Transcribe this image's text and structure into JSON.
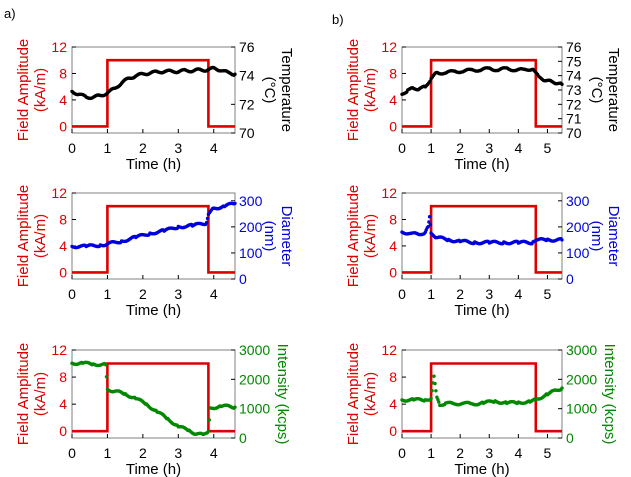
{
  "figure": {
    "panel_labels": [
      "a)",
      "b)"
    ],
    "colors": {
      "field": "#dd0000",
      "temperature": "#000000",
      "diameter": "#0000dd",
      "intensity": "#008800",
      "axis": "#000000",
      "grid_frame": "#808080"
    }
  },
  "chart_data": [
    {
      "id": "a1",
      "type": "line",
      "xlabel": "Time (h)",
      "ylabel_left": "Field Amplitude\n(kA/m)",
      "ylabel_right": "Temperature\n(°C)",
      "xlim": [
        0,
        4.6
      ],
      "x_ticks": [
        0,
        1,
        2,
        3,
        4
      ],
      "y_left_lim": [
        -1,
        12
      ],
      "y_left_ticks": [
        0,
        4,
        8,
        12
      ],
      "y_right_lim": [
        70,
        76
      ],
      "y_right_ticks": [
        70,
        72,
        74,
        76
      ],
      "series": [
        {
          "axis": "left",
          "color": "#dd0000",
          "style": "line",
          "x": [
            0,
            1,
            1,
            3.85,
            3.85,
            4.6
          ],
          "y": [
            0,
            0,
            10,
            10,
            0,
            0
          ]
        },
        {
          "axis": "right",
          "color": "#000000",
          "style": "dots",
          "x": [
            0,
            0.2,
            0.4,
            0.6,
            0.8,
            1.0,
            1.2,
            1.4,
            1.6,
            1.8,
            2.0,
            2.2,
            2.4,
            2.6,
            2.8,
            3.0,
            3.2,
            3.4,
            3.6,
            3.8,
            4.0,
            4.2,
            4.4,
            4.6
          ],
          "y": [
            72.9,
            72.7,
            72.5,
            72.5,
            72.6,
            72.8,
            73.1,
            73.5,
            73.8,
            74.0,
            74.1,
            74.2,
            74.25,
            74.3,
            74.3,
            74.3,
            74.35,
            74.35,
            74.4,
            74.4,
            74.5,
            74.4,
            74.2,
            74.1
          ]
        }
      ]
    },
    {
      "id": "b1",
      "type": "line",
      "xlabel": "Time (h)",
      "ylabel_left": "Field Amplitude\n(kA/m)",
      "ylabel_right": "Temperature\n(°C)",
      "xlim": [
        0,
        5.5
      ],
      "x_ticks": [
        0,
        1,
        2,
        3,
        4,
        5
      ],
      "y_left_lim": [
        -1,
        12
      ],
      "y_left_ticks": [
        0,
        4,
        8,
        12
      ],
      "y_right_lim": [
        70,
        76
      ],
      "y_right_ticks": [
        70,
        71,
        72,
        73,
        74,
        75,
        76
      ],
      "series": [
        {
          "axis": "left",
          "color": "#dd0000",
          "style": "line",
          "x": [
            0,
            1,
            1,
            4.6,
            4.6,
            5.5
          ],
          "y": [
            0,
            0,
            10,
            10,
            0,
            0
          ]
        },
        {
          "axis": "right",
          "color": "#000000",
          "style": "dots",
          "x": [
            0,
            0.2,
            0.4,
            0.6,
            0.8,
            1.0,
            1.2,
            1.5,
            1.8,
            2.1,
            2.4,
            2.7,
            3.0,
            3.3,
            3.6,
            3.9,
            4.2,
            4.5,
            4.7,
            4.9,
            5.1,
            5.3,
            5.5
          ],
          "y": [
            72.7,
            73.0,
            73.1,
            73.1,
            73.2,
            73.8,
            74.2,
            74.2,
            74.3,
            74.3,
            74.4,
            74.4,
            74.5,
            74.4,
            74.5,
            74.4,
            74.4,
            74.5,
            73.9,
            73.7,
            73.6,
            73.5,
            73.4
          ]
        }
      ]
    },
    {
      "id": "a2",
      "type": "line",
      "xlabel": "Time (h)",
      "ylabel_left": "Field Amplitude\n(kA/m)",
      "ylabel_right": "Diameter\n(nm)",
      "xlim": [
        0,
        4.6
      ],
      "x_ticks": [
        0,
        1,
        2,
        3,
        4
      ],
      "y_left_lim": [
        -1,
        12
      ],
      "y_left_ticks": [
        0,
        4,
        8,
        12
      ],
      "y_right_lim": [
        0,
        330
      ],
      "y_right_ticks": [
        0,
        100,
        200,
        300
      ],
      "series": [
        {
          "axis": "left",
          "color": "#dd0000",
          "style": "line",
          "x": [
            0,
            1,
            1,
            3.85,
            3.85,
            4.6
          ],
          "y": [
            0,
            0,
            10,
            10,
            0,
            0
          ]
        },
        {
          "axis": "right",
          "color": "#0000dd",
          "style": "dots",
          "x": [
            0,
            0.4,
            0.8,
            1.0,
            1.4,
            1.8,
            2.2,
            2.6,
            3.0,
            3.4,
            3.8,
            3.85,
            4.0,
            4.3,
            4.6
          ],
          "y": [
            125,
            125,
            130,
            135,
            145,
            160,
            175,
            185,
            200,
            205,
            215,
            250,
            270,
            280,
            290
          ]
        }
      ]
    },
    {
      "id": "b2",
      "type": "line",
      "xlabel": "Time (h)",
      "ylabel_left": "Field Amplitude\n(kA/m)",
      "ylabel_right": "Diameter\n(nm)",
      "xlim": [
        0,
        5.5
      ],
      "x_ticks": [
        0,
        1,
        2,
        3,
        4,
        5
      ],
      "y_left_lim": [
        -1,
        12
      ],
      "y_left_ticks": [
        0,
        4,
        8,
        12
      ],
      "y_right_lim": [
        0,
        330
      ],
      "y_right_ticks": [
        0,
        100,
        200,
        300
      ],
      "series": [
        {
          "axis": "left",
          "color": "#dd0000",
          "style": "line",
          "x": [
            0,
            1,
            1,
            4.6,
            4.6,
            5.5
          ],
          "y": [
            0,
            0,
            10,
            10,
            0,
            0
          ]
        },
        {
          "axis": "right",
          "color": "#0000dd",
          "style": "dots",
          "x": [
            0,
            0.3,
            0.6,
            0.8,
            0.9,
            0.95,
            1.0,
            1.2,
            1.6,
            2.0,
            2.5,
            3.0,
            3.5,
            4.0,
            4.5,
            4.6,
            5.0,
            5.5
          ],
          "y": [
            180,
            175,
            170,
            180,
            200,
            240,
            175,
            160,
            150,
            145,
            140,
            140,
            140,
            140,
            140,
            150,
            150,
            150
          ]
        }
      ]
    },
    {
      "id": "a3",
      "type": "line",
      "xlabel": "Time (h)",
      "ylabel_left": "Field Amplitude\n(kA/m)",
      "ylabel_right": "Intensity (kcps)",
      "xlim": [
        0,
        4.6
      ],
      "x_ticks": [
        0,
        1,
        2,
        3,
        4
      ],
      "y_left_lim": [
        -1,
        12
      ],
      "y_left_ticks": [
        0,
        4,
        8,
        12
      ],
      "y_right_lim": [
        0,
        3000
      ],
      "y_right_ticks": [
        0,
        1000,
        2000,
        3000
      ],
      "series": [
        {
          "axis": "left",
          "color": "#dd0000",
          "style": "line",
          "x": [
            0,
            1,
            1,
            3.85,
            3.85,
            4.6
          ],
          "y": [
            0,
            0,
            10,
            10,
            0,
            0
          ]
        },
        {
          "axis": "right",
          "color": "#008800",
          "style": "dots",
          "x": [
            0,
            0.3,
            0.6,
            0.95,
            1.0,
            1.2,
            1.5,
            1.8,
            2.1,
            2.4,
            2.7,
            3.0,
            3.3,
            3.5,
            3.7,
            3.85,
            3.9,
            4.2,
            4.6
          ],
          "y": [
            2550,
            2550,
            2520,
            2500,
            1650,
            1600,
            1500,
            1350,
            1150,
            900,
            650,
            400,
            250,
            150,
            100,
            250,
            1000,
            1100,
            1050
          ]
        }
      ]
    },
    {
      "id": "b3",
      "type": "line",
      "xlabel": "Time (h)",
      "ylabel_left": "Field Amplitude\n(kA/m)",
      "ylabel_right": "Intensity (kcps)",
      "xlim": [
        0,
        5.5
      ],
      "x_ticks": [
        0,
        1,
        2,
        3,
        4,
        5
      ],
      "y_left_lim": [
        -1,
        12
      ],
      "y_left_ticks": [
        0,
        4,
        8,
        12
      ],
      "y_right_lim": [
        0,
        3000
      ],
      "y_right_ticks": [
        0,
        1000,
        2000,
        3000
      ],
      "series": [
        {
          "axis": "left",
          "color": "#dd0000",
          "style": "line",
          "x": [
            0,
            1,
            1,
            4.6,
            4.6,
            5.5
          ],
          "y": [
            0,
            0,
            10,
            10,
            0,
            0
          ]
        },
        {
          "axis": "right",
          "color": "#008800",
          "style": "dots",
          "x": [
            0,
            0.4,
            0.8,
            1.0,
            1.1,
            1.2,
            1.3,
            1.5,
            1.8,
            2.1,
            2.4,
            2.8,
            3.2,
            3.6,
            4.0,
            4.4,
            4.6,
            5.0,
            5.5
          ],
          "y": [
            1300,
            1300,
            1300,
            1350,
            2100,
            1400,
            1100,
            1200,
            1150,
            1200,
            1150,
            1200,
            1250,
            1200,
            1200,
            1250,
            1300,
            1500,
            1700
          ]
        }
      ]
    }
  ]
}
